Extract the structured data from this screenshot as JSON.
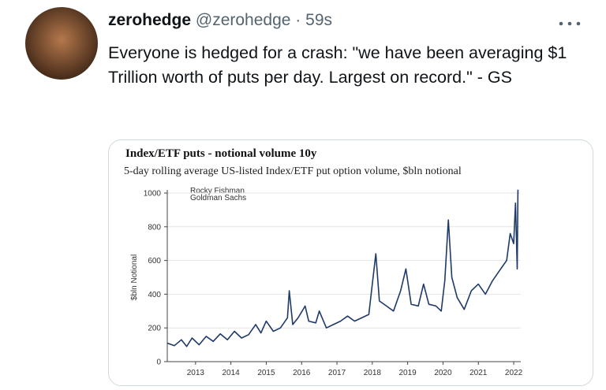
{
  "tweet": {
    "name": "zerohedge",
    "handle": "@zerohedge",
    "separator": "·",
    "time": "59s",
    "text": "Everyone is hedged for a crash: \"we have been averaging $1 Trillion worth of puts per day. Largest on record.\" - GS"
  },
  "chart_data": {
    "type": "line",
    "title": "Index/ETF puts - notional volume 10y",
    "subtitle": "5-day rolling average US-listed Index/ETF put option volume, $bln notional",
    "ylabel": "$bln Notional",
    "annotations": [
      "Rocky Fishman",
      "Goldman Sachs"
    ],
    "color": "#1f3a68",
    "x": [
      2012.2,
      2012.4,
      2012.6,
      2012.75,
      2012.9,
      2013.1,
      2013.3,
      2013.5,
      2013.7,
      2013.9,
      2014.1,
      2014.3,
      2014.5,
      2014.7,
      2014.85,
      2015.0,
      2015.2,
      2015.4,
      2015.6,
      2015.65,
      2015.75,
      2015.9,
      2016.1,
      2016.2,
      2016.4,
      2016.5,
      2016.7,
      2016.9,
      2017.1,
      2017.3,
      2017.5,
      2017.7,
      2017.9,
      2018.1,
      2018.2,
      2018.4,
      2018.6,
      2018.8,
      2018.95,
      2019.1,
      2019.3,
      2019.45,
      2019.6,
      2019.8,
      2019.95,
      2020.05,
      2020.15,
      2020.25,
      2020.4,
      2020.6,
      2020.8,
      2021.0,
      2021.2,
      2021.4,
      2021.6,
      2021.8,
      2021.9,
      2022.0,
      2022.05,
      2022.1,
      2022.12
    ],
    "values": [
      110,
      95,
      130,
      90,
      140,
      100,
      150,
      120,
      165,
      130,
      180,
      140,
      160,
      220,
      170,
      240,
      180,
      200,
      260,
      420,
      220,
      260,
      330,
      240,
      230,
      300,
      200,
      220,
      240,
      270,
      240,
      260,
      280,
      640,
      360,
      330,
      300,
      420,
      550,
      340,
      330,
      460,
      340,
      330,
      300,
      480,
      840,
      500,
      380,
      310,
      420,
      460,
      400,
      480,
      540,
      600,
      760,
      700,
      940,
      550,
      1020
    ],
    "xlim": [
      2012.2,
      2022.2
    ],
    "xticks": [
      2013,
      2014,
      2015,
      2016,
      2017,
      2018,
      2019,
      2020,
      2021,
      2022
    ],
    "ylim": [
      0,
      1000
    ],
    "yticks": [
      0,
      200,
      400,
      600,
      800,
      1000
    ],
    "grid": true
  }
}
